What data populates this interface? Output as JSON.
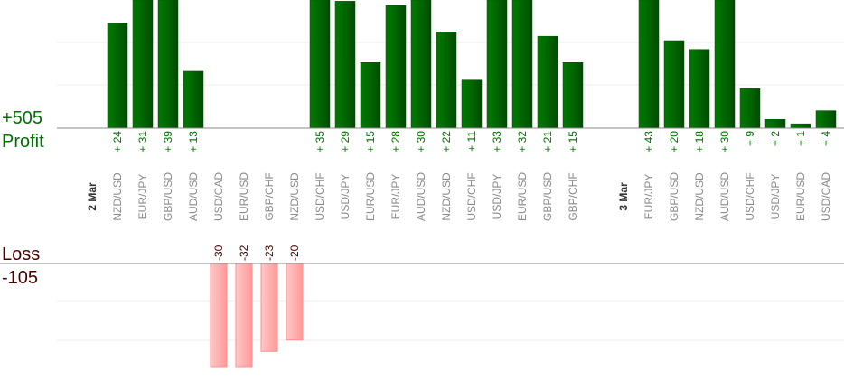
{
  "chart_data": {
    "type": "bar",
    "profit_total_label": "+505",
    "profit_label": "Profit",
    "loss_label": "Loss",
    "loss_total_label": "-105",
    "colors": {
      "profit": "#006400",
      "profit_text": "#007000",
      "loss": "#ffb0b0",
      "loss_border": "#ff9090",
      "loss_text": "#4a0000"
    },
    "grid": true,
    "days": [
      {
        "label": "2 Mar",
        "trades": [
          {
            "pair": "NZD/USD",
            "value": 24
          },
          {
            "pair": "EUR/JPY",
            "value": 31
          },
          {
            "pair": "GBP/USD",
            "value": 39
          },
          {
            "pair": "AUD/USD",
            "value": 13
          },
          {
            "pair": "USD/CAD",
            "value": -30
          },
          {
            "pair": "EUR/USD",
            "value": -32
          },
          {
            "pair": "GBP/CHF",
            "value": -23
          },
          {
            "pair": "NZD/USD",
            "value": -20
          },
          {
            "pair": "USD/CHF",
            "value": 35
          },
          {
            "pair": "USD/JPY",
            "value": 29
          },
          {
            "pair": "EUR/USD",
            "value": 15
          },
          {
            "pair": "EUR/JPY",
            "value": 28
          },
          {
            "pair": "AUD/USD",
            "value": 30
          },
          {
            "pair": "NZD/USD",
            "value": 22
          },
          {
            "pair": "USD/CHF",
            "value": 11
          },
          {
            "pair": "USD/JPY",
            "value": 33
          },
          {
            "pair": "EUR/USD",
            "value": 32
          },
          {
            "pair": "GBP/USD",
            "value": 21
          },
          {
            "pair": "GBP/CHF",
            "value": 15
          }
        ]
      },
      {
        "label": "3 Mar",
        "trades": [
          {
            "pair": "EUR/JPY",
            "value": 43
          },
          {
            "pair": "GBP/USD",
            "value": 20
          },
          {
            "pair": "NZD/USD",
            "value": 18
          },
          {
            "pair": "AUD/USD",
            "value": 30
          },
          {
            "pair": "USD/CHF",
            "value": 9
          },
          {
            "pair": "USD/JPY",
            "value": 2
          },
          {
            "pair": "EUR/USD",
            "value": 1
          },
          {
            "pair": "USD/CAD",
            "value": 4
          }
        ]
      }
    ]
  }
}
